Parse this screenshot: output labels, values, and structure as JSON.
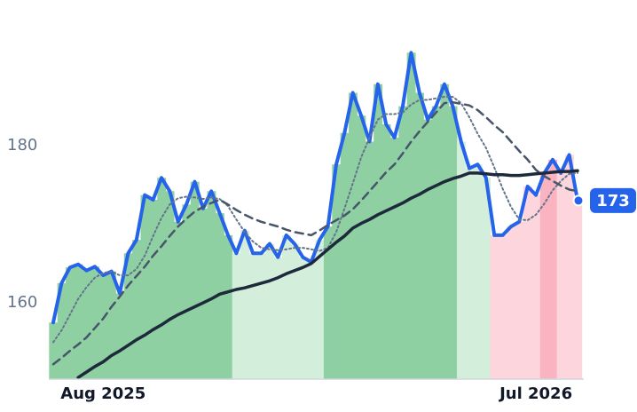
{
  "chart_data": {
    "type": "line",
    "categories": [
      null,
      null,
      null,
      null,
      null,
      null,
      "Aug 2025",
      null,
      null,
      null,
      null,
      null,
      null,
      null,
      null,
      null,
      null,
      null,
      null,
      null,
      null,
      null,
      null,
      null,
      null,
      null,
      null,
      null,
      null,
      null,
      null,
      null,
      null,
      null,
      null,
      null,
      null,
      null,
      null,
      null,
      null,
      null,
      null,
      null,
      null,
      null,
      null,
      null,
      null,
      null,
      null,
      null,
      null,
      null,
      null,
      null,
      null,
      null,
      "Jul 2026",
      null,
      null,
      null,
      null,
      null
    ],
    "ylim": [
      150.3,
      198.5
    ],
    "yticks": [
      160,
      180
    ],
    "grid": false,
    "series": [
      {
        "color": "#2563eb",
        "style": "solid",
        "width": 4,
        "values": [
          157.5,
          162.5,
          164.5,
          164.9,
          164.1,
          164.6,
          163.5,
          164,
          161.2,
          166.3,
          168,
          173.7,
          173.1,
          175.9,
          174.2,
          170.3,
          172.5,
          175.4,
          172,
          174.2,
          171.4,
          168.6,
          166.3,
          169.2,
          166.3,
          166.3,
          167.5,
          165.8,
          168.6,
          167.5,
          165.8,
          165.2,
          168,
          169.7,
          177.6,
          181.6,
          186.7,
          183.8,
          180.5,
          187.8,
          182.7,
          181,
          185,
          191.8,
          186.7,
          183.3,
          185,
          187.8,
          185,
          180.5,
          177.1,
          177.6,
          175.9,
          168.6,
          168.6,
          169.7,
          170.3,
          174.8,
          173.7,
          176.5,
          178.2,
          176.5,
          178.8,
          173
        ],
        "area_colors": [
          "#8fd0a3",
          "#8fd0a3",
          "#8fd0a3",
          "#8fd0a3",
          "#8fd0a3",
          "#8fd0a3",
          "#8fd0a3",
          "#8fd0a3",
          "#8fd0a3",
          "#8fd0a3",
          "#8fd0a3",
          "#8fd0a3",
          "#8fd0a3",
          "#8fd0a3",
          "#8fd0a3",
          "#8fd0a3",
          "#8fd0a3",
          "#8fd0a3",
          "#8fd0a3",
          "#8fd0a3",
          "#8fd0a3",
          "#8fd0a3",
          "#d3eedb",
          "#d3eedb",
          "#d3eedb",
          "#d3eedb",
          "#d3eedb",
          "#d3eedb",
          "#d3eedb",
          "#d3eedb",
          "#d3eedb",
          "#d3eedb",
          "#d3eedb",
          "#8fd0a3",
          "#8fd0a3",
          "#8fd0a3",
          "#8fd0a3",
          "#8fd0a3",
          "#8fd0a3",
          "#8fd0a3",
          "#8fd0a3",
          "#8fd0a3",
          "#8fd0a3",
          "#8fd0a3",
          "#8fd0a3",
          "#8fd0a3",
          "#8fd0a3",
          "#8fd0a3",
          "#8fd0a3",
          "#d3eedb",
          "#d3eedb",
          "#d3eedb",
          "#d3eedb",
          "#fdd5dd",
          "#fdd5dd",
          "#fdd5dd",
          "#fdd5dd",
          "#fdd5dd",
          "#fdd5dd",
          "#f9b3c1",
          "#f9b3c1",
          "#fdd5dd",
          "#fdd5dd",
          "#fdd5dd"
        ]
      },
      {
        "color": "#64748b",
        "style": "dotted",
        "width": 2,
        "values": [
          155,
          156.5,
          158.5,
          160.5,
          162,
          163.2,
          163.8,
          164,
          163.5,
          163.5,
          164.3,
          166,
          168.5,
          170.8,
          172.5,
          173.3,
          173.5,
          173.4,
          173.2,
          173.4,
          173.2,
          172.3,
          170.6,
          169,
          167.8,
          167,
          166.8,
          166.7,
          166.8,
          167,
          167,
          166.8,
          166.6,
          167,
          169,
          172,
          175.2,
          178.5,
          181,
          183.3,
          184,
          184,
          184.2,
          185.2,
          185.8,
          185.8,
          186,
          186.2,
          186.2,
          185.4,
          183.6,
          181.5,
          179.7,
          177.2,
          174.5,
          172.2,
          170.6,
          170.5,
          171.2,
          172.6,
          174.3,
          175.5,
          176.4,
          176.5
        ]
      },
      {
        "color": "#475569",
        "style": "dashed",
        "width": 2.5,
        "values": [
          152.2,
          153,
          153.9,
          154.7,
          155.6,
          156.8,
          158,
          159.5,
          160.8,
          162.2,
          163.4,
          164.6,
          166,
          167.2,
          168.5,
          169.7,
          170.7,
          171.6,
          172.2,
          172.7,
          173.1,
          172.5,
          171.8,
          171.2,
          170.7,
          170.3,
          170,
          169.7,
          169.3,
          169,
          168.8,
          168.6,
          169.2,
          169.9,
          170.5,
          171.1,
          171.9,
          173,
          174.2,
          175.4,
          176.6,
          177.6,
          179,
          180.5,
          181.8,
          183,
          184.2,
          185.4,
          185.5,
          185.3,
          185.1,
          184.5,
          183.6,
          182.6,
          181.7,
          180.5,
          179.3,
          178.2,
          176.9,
          176.1,
          175.5,
          174.9,
          174.4,
          174.2
        ]
      },
      {
        "color": "#1e293b",
        "style": "solid",
        "width": 3.5,
        "values": [
          null,
          null,
          null,
          150.5,
          151.2,
          151.9,
          152.5,
          153.3,
          153.9,
          154.6,
          155.3,
          155.9,
          156.6,
          157.2,
          157.9,
          158.5,
          159,
          159.5,
          160,
          160.5,
          161.1,
          161.4,
          161.7,
          161.9,
          162.2,
          162.5,
          162.8,
          163.2,
          163.7,
          164.1,
          164.5,
          165,
          165.9,
          166.8,
          167.7,
          168.5,
          169.5,
          170.1,
          170.6,
          171.2,
          171.7,
          172.2,
          172.7,
          173.3,
          173.8,
          174.4,
          174.9,
          175.4,
          175.8,
          176.1,
          176.5,
          176.5,
          176.4,
          176.3,
          176.3,
          176.2,
          176.2,
          176.3,
          176.4,
          176.5,
          176.6,
          176.7,
          176.7,
          176.8
        ]
      }
    ]
  }
}
